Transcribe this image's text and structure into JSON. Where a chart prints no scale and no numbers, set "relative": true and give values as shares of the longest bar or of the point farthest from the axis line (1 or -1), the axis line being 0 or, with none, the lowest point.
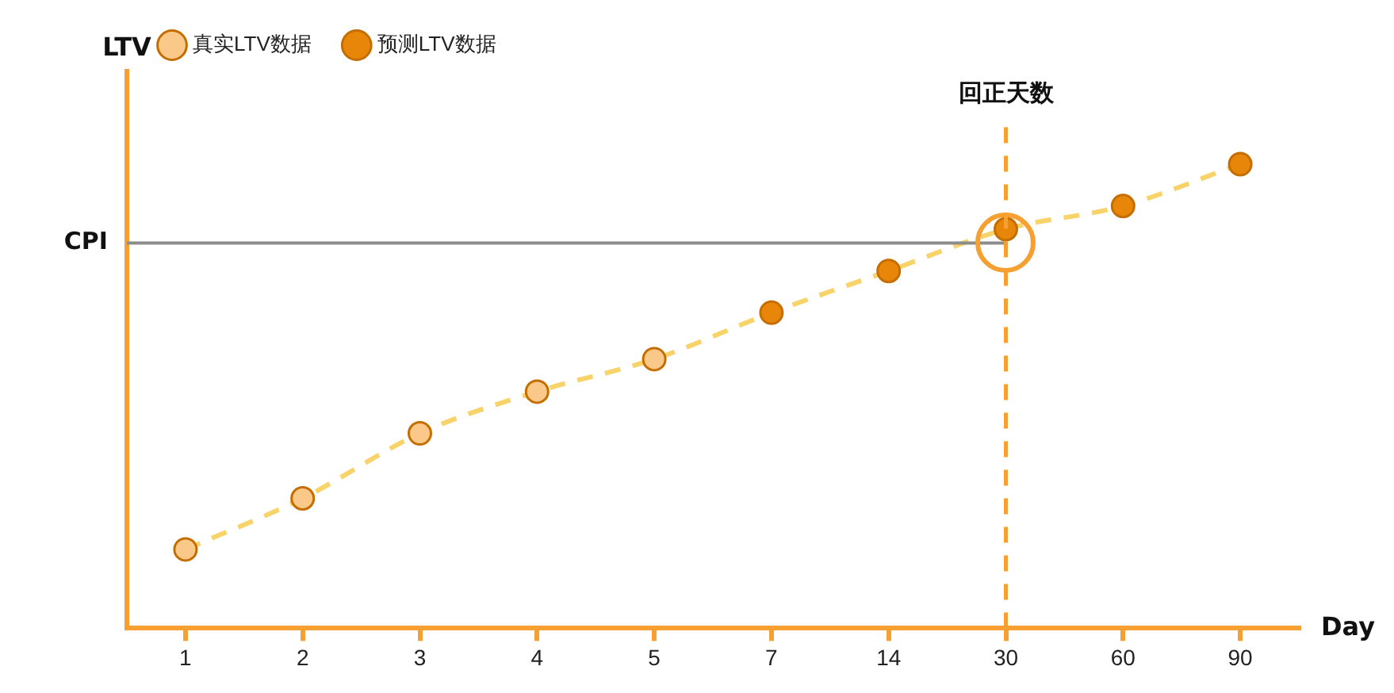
{
  "chart_data": {
    "type": "line",
    "xlabel": "Day",
    "ylabel": "LTV",
    "relative": true,
    "tick_labels": "x",
    "legend": "top left",
    "categories": [
      "1",
      "2",
      "3",
      "4",
      "5",
      "7",
      "14",
      "30",
      "60",
      "90"
    ],
    "series": [
      {
        "type": "line",
        "color": "#f8d36a",
        "line_style": "dashed",
        "marker": "none",
        "values": [
          0.17,
          0.28,
          0.42,
          0.51,
          0.58,
          0.68,
          0.77,
          0.86,
          0.91,
          1
        ]
      },
      {
        "name": "真实LTV数据",
        "type": "scatter",
        "marker": "circle",
        "color": "#fac98a",
        "values": [
          0.17,
          0.28,
          0.42,
          0.51,
          0.58,
          null,
          null,
          null,
          null,
          null
        ]
      },
      {
        "name": "预测LTV数据",
        "type": "scatter",
        "marker": "circle",
        "color": "#e8860a",
        "values": [
          null,
          null,
          null,
          null,
          null,
          0.68,
          0.77,
          0.86,
          0.91,
          1
        ]
      }
    ],
    "ref_lines": [
      {
        "axis": "y",
        "value": 0.83,
        "label": "CPI",
        "color": "#8c8c8c"
      },
      {
        "axis": "x",
        "value": "30",
        "label": "回正天数",
        "color": "#f5a030",
        "line_style": "dashed"
      }
    ]
  }
}
